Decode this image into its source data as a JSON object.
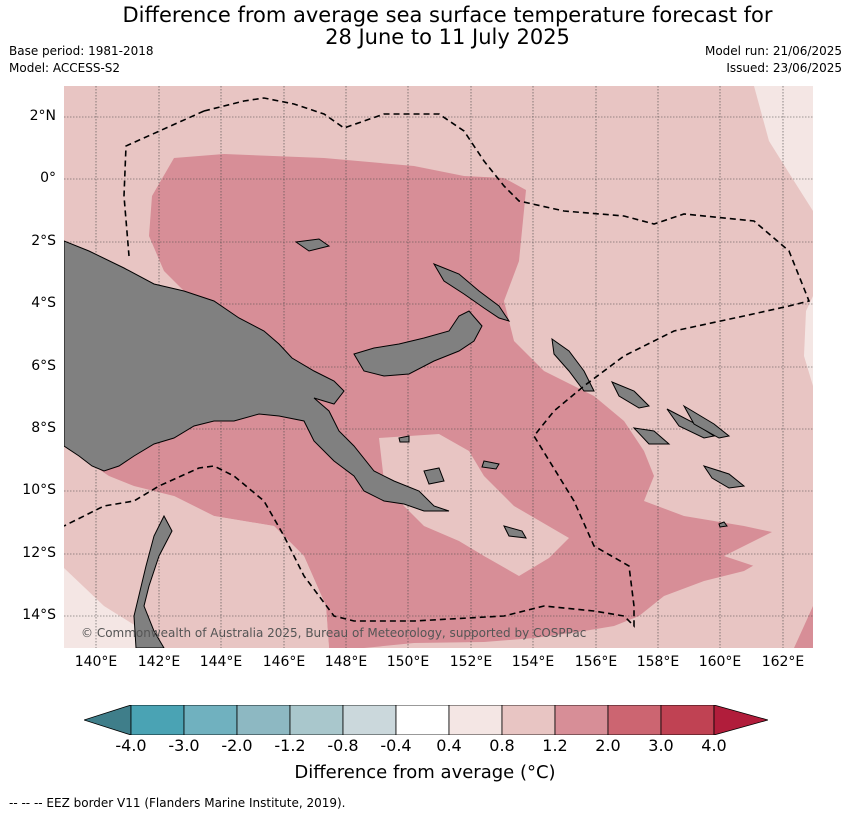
{
  "header": {
    "title_line1": "Difference from average sea surface temperature forecast for",
    "title_line2": "28 June to 11 July 2025",
    "base_period": "Base period: 1981-2018",
    "model": "Model: ACCESS-S2",
    "model_run": "Model run: 21/06/2025",
    "issued": "Issued: 23/06/2025"
  },
  "map": {
    "copyright": "© Commonwealth of Australia 2025, Bureau of Meteorology, supported by COSPPac",
    "lat_labels": [
      "2°N",
      "0°",
      "2°S",
      "4°S",
      "6°S",
      "8°S",
      "10°S",
      "12°S",
      "14°S"
    ],
    "lon_labels": [
      "140°E",
      "142°E",
      "144°E",
      "146°E",
      "148°E",
      "150°E",
      "152°E",
      "154°E",
      "156°E",
      "158°E",
      "160°E",
      "162°E"
    ],
    "colors": {
      "land": "#808080",
      "anomaly_0_4_to_0_8": "#f4e6e4",
      "anomaly_0_8_to_1_2": "#e8c5c3",
      "anomaly_1_2_to_2_0": "#d78e97",
      "eez_border": "#000000"
    }
  },
  "colorbar": {
    "title": "Difference from average (°C)",
    "ticks": [
      "-4.0",
      "-3.0",
      "-2.0",
      "-1.2",
      "-0.8",
      "-0.4",
      "0.4",
      "0.8",
      "1.2",
      "2.0",
      "3.0",
      "4.0"
    ],
    "colors": [
      "#3f7e8a",
      "#4aa3b4",
      "#70b1bf",
      "#8db8c2",
      "#a9c7cc",
      "#cbd8dc",
      "#ffffff",
      "#f4e6e4",
      "#e8c5c3",
      "#d78e97",
      "#cc6571",
      "#c04253",
      "#b11d3b"
    ]
  },
  "footnote": "--  --  -- EEZ border V11 (Flanders Marine Institute, 2019)."
}
